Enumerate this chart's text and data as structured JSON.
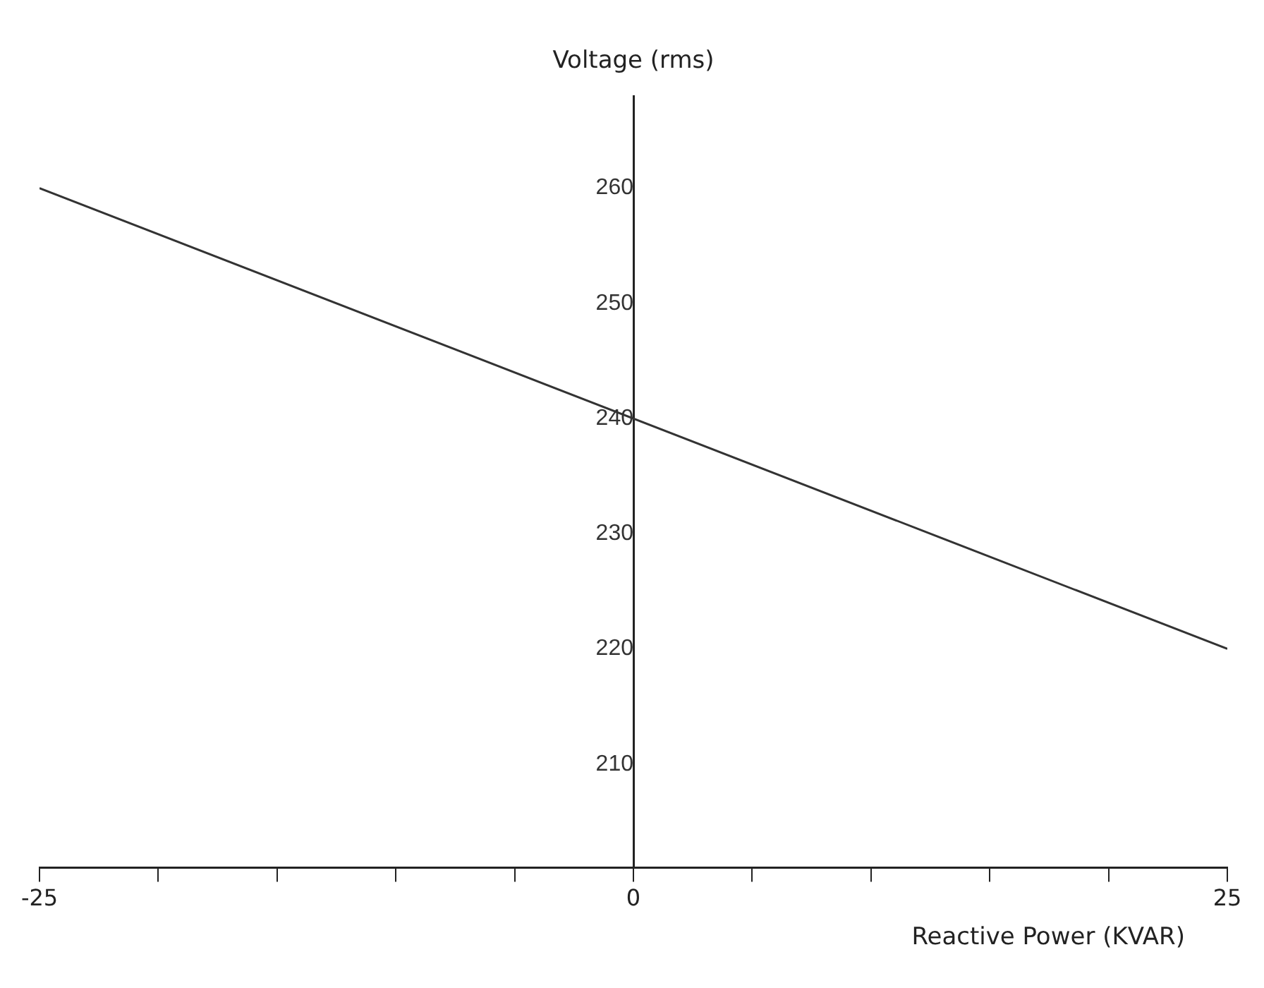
{
  "chart_data": {
    "type": "line",
    "xlabel": "Reactive Power (KVAR)",
    "ylabel": "Voltage (rms)",
    "x": [
      -25,
      25
    ],
    "series": [
      {
        "color": "#333333",
        "values": [
          260,
          220
        ]
      }
    ],
    "xlim": [
      -25,
      25
    ],
    "xticks": [
      -25,
      {
        "value": -20,
        "label": null
      },
      {
        "value": -15,
        "label": null
      },
      {
        "value": -10,
        "label": null
      },
      {
        "value": -5,
        "label": null
      },
      0,
      {
        "value": 5,
        "label": null
      },
      {
        "value": 10,
        "label": null
      },
      {
        "value": 15,
        "label": null
      },
      {
        "value": 20,
        "label": null
      },
      25
    ],
    "ylim": [
      201,
      268
    ],
    "yticks": [
      210,
      220,
      230,
      240,
      250,
      260
    ],
    "grid": false,
    "legend": false,
    "marker": "none",
    "line_style": "solid"
  }
}
